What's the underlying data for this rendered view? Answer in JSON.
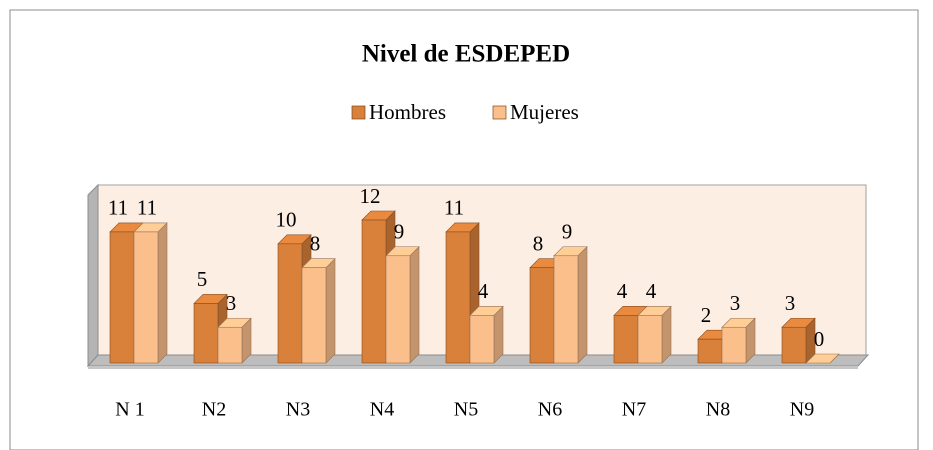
{
  "chart_data": {
    "type": "bar",
    "title": "Nivel de ESDEPED",
    "categories": [
      "N 1",
      "N2",
      "N3",
      "N4",
      "N5",
      "N6",
      "N7",
      "N8",
      "N9"
    ],
    "series": [
      {
        "name": "Hombres",
        "color": "#d9803a",
        "values": [
          11,
          5,
          10,
          12,
          11,
          8,
          4,
          2,
          3
        ]
      },
      {
        "name": "Mujeres",
        "color": "#fbbf8c",
        "values": [
          11,
          3,
          8,
          9,
          4,
          9,
          4,
          3,
          0
        ]
      }
    ],
    "legend": "top",
    "data_labels": true
  }
}
